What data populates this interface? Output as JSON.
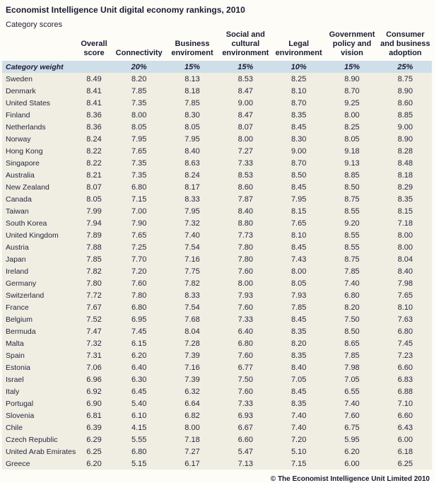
{
  "page": {
    "title": "Economist Intelligence Unit digital economy rankings, 2010",
    "subtitle": "Category scores",
    "footer": "© The Economist Intelligence Unit Limited 2010"
  },
  "colors": {
    "weight_row_bg": "#cfdfe9",
    "body_row_bg": "#f0eee2",
    "page_bg": "#fdfcf6",
    "text": "#1b1b35"
  },
  "table": {
    "columns": [
      "",
      "Overall score",
      "Connectivity",
      "Business enviroment",
      "Social and cultural environment",
      "Legal environment",
      "Government policy and vision",
      "Consumer and business adoption"
    ],
    "weight_row": {
      "label": "Category weight",
      "weights": [
        "",
        "20%",
        "15%",
        "15%",
        "10%",
        "15%",
        "25%"
      ]
    },
    "rows": [
      {
        "country": "Sweden",
        "values": [
          "8.49",
          "8.20",
          "8.13",
          "8.53",
          "8.25",
          "8.90",
          "8.75"
        ]
      },
      {
        "country": "Denmark",
        "values": [
          "8.41",
          "7.85",
          "8.18",
          "8.47",
          "8.10",
          "8.70",
          "8.90"
        ]
      },
      {
        "country": "United States",
        "values": [
          "8.41",
          "7.35",
          "7.85",
          "9.00",
          "8.70",
          "9.25",
          "8.60"
        ]
      },
      {
        "country": "Finland",
        "values": [
          "8.36",
          "8.00",
          "8.30",
          "8.47",
          "8.35",
          "8.00",
          "8.85"
        ]
      },
      {
        "country": "Netherlands",
        "values": [
          "8.36",
          "8.05",
          "8.05",
          "8.07",
          "8.45",
          "8.25",
          "9.00"
        ]
      },
      {
        "country": "Norway",
        "values": [
          "8.24",
          "7.95",
          "7.95",
          "8.00",
          "8.30",
          "8.05",
          "8.90"
        ]
      },
      {
        "country": "Hong Kong",
        "values": [
          "8.22",
          "7.65",
          "8.40",
          "7.27",
          "9.00",
          "9.18",
          "8.28"
        ]
      },
      {
        "country": "Singapore",
        "values": [
          "8.22",
          "7.35",
          "8.63",
          "7.33",
          "8.70",
          "9.13",
          "8.48"
        ]
      },
      {
        "country": "Australia",
        "values": [
          "8.21",
          "7.35",
          "8.24",
          "8.53",
          "8.50",
          "8.85",
          "8.18"
        ]
      },
      {
        "country": "New Zealand",
        "values": [
          "8.07",
          "6.80",
          "8.17",
          "8.60",
          "8.45",
          "8.50",
          "8.29"
        ]
      },
      {
        "country": "Canada",
        "values": [
          "8.05",
          "7.15",
          "8.33",
          "7.87",
          "7.95",
          "8.75",
          "8.35"
        ]
      },
      {
        "country": "Taiwan",
        "values": [
          "7.99",
          "7.00",
          "7.95",
          "8.40",
          "8.15",
          "8.55",
          "8.15"
        ]
      },
      {
        "country": "South Korea",
        "values": [
          "7.94",
          "7.90",
          "7.32",
          "8.80",
          "7.65",
          "9.20",
          "7.18"
        ]
      },
      {
        "country": "United Kingdom",
        "values": [
          "7.89",
          "7.65",
          "7.40",
          "7.73",
          "8.10",
          "8.55",
          "8.00"
        ]
      },
      {
        "country": "Austria",
        "values": [
          "7.88",
          "7.25",
          "7.54",
          "7.80",
          "8.45",
          "8.55",
          "8.00"
        ]
      },
      {
        "country": "Japan",
        "values": [
          "7.85",
          "7.70",
          "7.16",
          "7.80",
          "7.43",
          "8.75",
          "8.04"
        ]
      },
      {
        "country": "Ireland",
        "values": [
          "7.82",
          "7.20",
          "7.75",
          "7.60",
          "8.00",
          "7.85",
          "8.40"
        ]
      },
      {
        "country": "Germany",
        "values": [
          "7.80",
          "7.60",
          "7.82",
          "8.00",
          "8.05",
          "7.40",
          "7.98"
        ]
      },
      {
        "country": "Switzerland",
        "values": [
          "7.72",
          "7.80",
          "8.33",
          "7.93",
          "7.93",
          "6.80",
          "7.65"
        ]
      },
      {
        "country": "France",
        "values": [
          "7.67",
          "6.80",
          "7.54",
          "7.60",
          "7.85",
          "8.20",
          "8.10"
        ]
      },
      {
        "country": "Belgium",
        "values": [
          "7.52",
          "6.95",
          "7.68",
          "7.33",
          "8.45",
          "7.50",
          "7.63"
        ]
      },
      {
        "country": "Bermuda",
        "values": [
          "7.47",
          "7.45",
          "8.04",
          "6.40",
          "8.35",
          "8.50",
          "6.80"
        ]
      },
      {
        "country": "Malta",
        "values": [
          "7.32",
          "6.15",
          "7.28",
          "6.80",
          "8.20",
          "8.65",
          "7.45"
        ]
      },
      {
        "country": "Spain",
        "values": [
          "7.31",
          "6.20",
          "7.39",
          "7.60",
          "8.35",
          "7.85",
          "7.23"
        ]
      },
      {
        "country": "Estonia",
        "values": [
          "7.06",
          "6.40",
          "7.16",
          "6.77",
          "8.40",
          "7.98",
          "6.60"
        ]
      },
      {
        "country": "Israel",
        "values": [
          "6.96",
          "6.30",
          "7.39",
          "7.50",
          "7.05",
          "7.05",
          "6.83"
        ]
      },
      {
        "country": "Italy",
        "values": [
          "6.92",
          "6.45",
          "6.32",
          "7.60",
          "8.45",
          "6.55",
          "6.88"
        ]
      },
      {
        "country": "Portugal",
        "values": [
          "6.90",
          "5.40",
          "6.64",
          "7.33",
          "8.35",
          "7.40",
          "7.10"
        ]
      },
      {
        "country": "Slovenia",
        "values": [
          "6.81",
          "6.10",
          "6.82",
          "6.93",
          "7.40",
          "7.60",
          "6.60"
        ]
      },
      {
        "country": "Chile",
        "values": [
          "6.39",
          "4.15",
          "8.00",
          "6.67",
          "7.40",
          "6.75",
          "6.43"
        ]
      },
      {
        "country": "Czech Republic",
        "values": [
          "6.29",
          "5.55",
          "7.18",
          "6.60",
          "7.20",
          "5.95",
          "6.00"
        ]
      },
      {
        "country": "United Arab Emirates",
        "values": [
          "6.25",
          "6.80",
          "7.27",
          "5.47",
          "5.10",
          "6.20",
          "6.18"
        ]
      },
      {
        "country": "Greece",
        "values": [
          "6.20",
          "5.15",
          "6.17",
          "7.13",
          "7.15",
          "6.00",
          "6.25"
        ]
      }
    ]
  }
}
